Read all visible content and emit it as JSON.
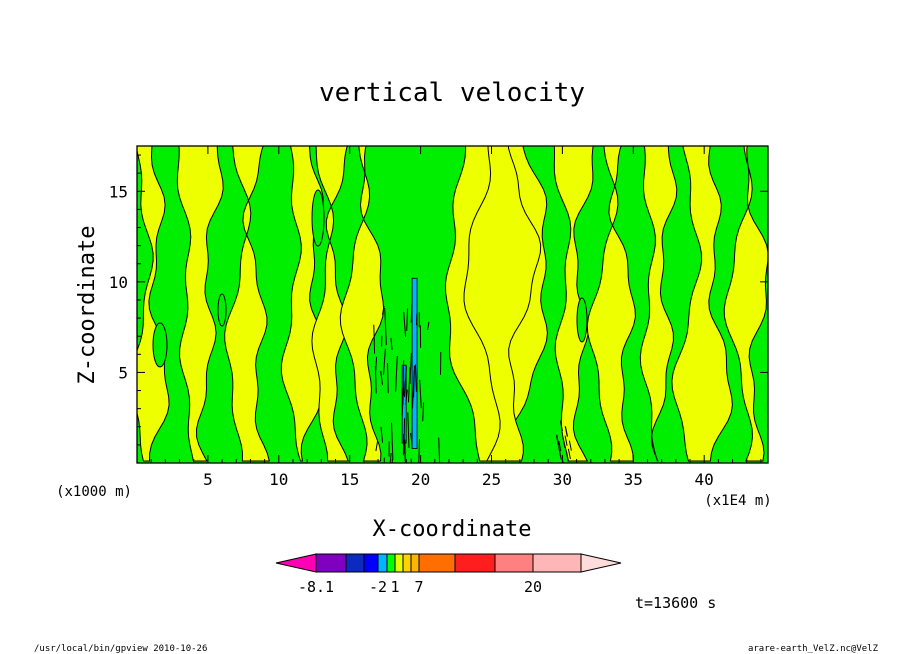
{
  "chart_data": {
    "type": "heatmap",
    "title": "vertical velocity",
    "xlabel": "X-coordinate",
    "ylabel": "Z-coordinate",
    "x_unit_note": "(x1E4 m)",
    "y_unit_note": "(x1000 m)",
    "xlim": [
      0,
      44.5
    ],
    "ylim": [
      0,
      17.5
    ],
    "x_ticks": [
      "5",
      "10",
      "15",
      "20",
      "25",
      "30",
      "35",
      "40"
    ],
    "y_ticks": [
      "5",
      "10",
      "15"
    ],
    "colorbar": {
      "colors": [
        "#ff00b4",
        "#7f00bf",
        "#0c2bbe",
        "#0000ff",
        "#00b4ff",
        "#00ff00",
        "#e6ff00",
        "#ffd200",
        "#ffb400",
        "#ff6e00",
        "#ff1e1e",
        "#ff8080",
        "#ffb6b6",
        "#ffdcdc"
      ],
      "labels": [
        "-8.1",
        "-2",
        "1",
        "7",
        "20"
      ]
    },
    "time_label": "t=13600 s",
    "footer_left": "/usr/local/bin/gpview   2010-10-26",
    "footer_right": "arare-earth_VelZ.nc@VelZ"
  }
}
